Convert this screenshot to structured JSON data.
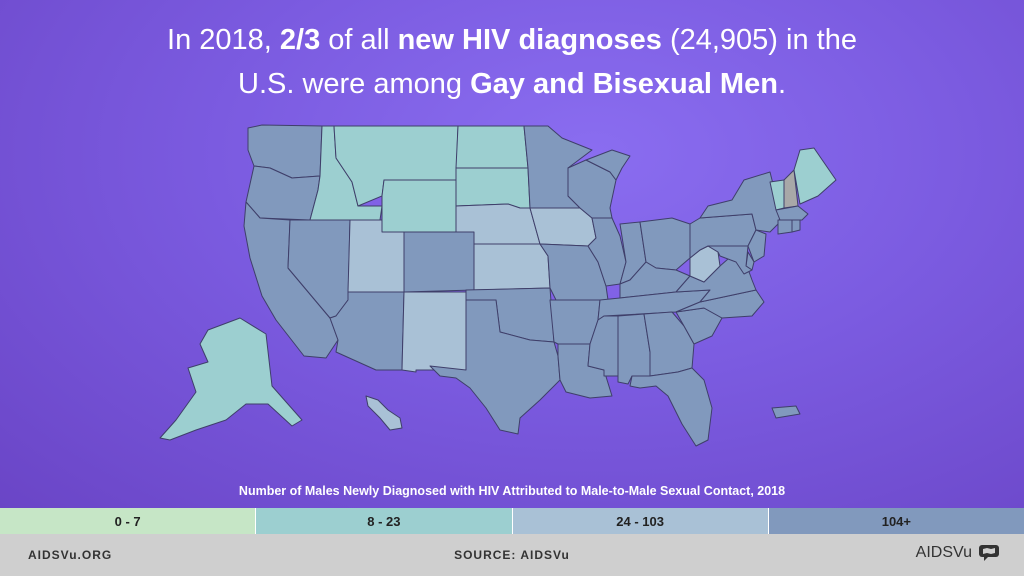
{
  "headline": {
    "line1": {
      "pre": "In 2018, ",
      "strong1": "2/3",
      "mid": " of all ",
      "strong2": "new HIV diagnoses",
      "post": " (24,905) in the"
    },
    "line2": {
      "pre": "U.S. were among ",
      "strong": "Gay and Bisexual Men",
      "post": "."
    }
  },
  "legend": {
    "title": "Number of Males Newly Diagnosed with HIV Attributed to Male-to-Male Sexual Contact, 2018",
    "bins": [
      {
        "label": "0 - 7",
        "color": "#c6e6c6"
      },
      {
        "label": "8 - 23",
        "color": "#9ccfd0"
      },
      {
        "label": "24 - 103",
        "color": "#a9c1d6"
      },
      {
        "label": "104+",
        "color": "#8199bd"
      }
    ]
  },
  "footer": {
    "website": "AIDSVu.ORG",
    "source": "SOURCE: AIDSVu",
    "logo_text": "AIDSVu",
    "logo_icon": "speech-bubble-map-icon"
  },
  "states": {
    "WA": "104+",
    "OR": "104+",
    "CA": "104+",
    "NV": "104+",
    "AZ": "104+",
    "ID": "8 - 23",
    "MT": "8 - 23",
    "WY": "8 - 23",
    "UT": "24 - 103",
    "CO": "104+",
    "NM": "24 - 103",
    "ND": "8 - 23",
    "SD": "8 - 23",
    "NE": "24 - 103",
    "KS": "24 - 103",
    "OK": "104+",
    "TX": "104+",
    "MN": "104+",
    "IA": "24 - 103",
    "MO": "104+",
    "AR": "104+",
    "LA": "104+",
    "WI": "104+",
    "IL": "104+",
    "MI": "104+",
    "IN": "104+",
    "OH": "104+",
    "KY": "104+",
    "TN": "104+",
    "MS": "104+",
    "AL": "104+",
    "GA": "104+",
    "FL": "104+",
    "SC": "104+",
    "NC": "104+",
    "VA": "104+",
    "WV": "24 - 103",
    "PA": "104+",
    "NY": "104+",
    "VT": "8 - 23",
    "NH": "not shown",
    "ME": "8 - 23",
    "MA": "104+",
    "CT": "104+",
    "RI": "104+",
    "NJ": "104+",
    "DE": "104+",
    "MD": "104+",
    "AK": "8 - 23",
    "HI": "24 - 103",
    "PR": "104+"
  }
}
